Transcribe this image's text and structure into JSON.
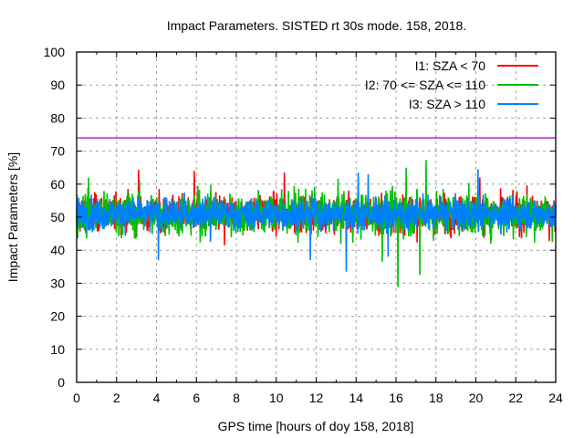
{
  "chart_data": {
    "type": "line",
    "title": "Impact Parameters. SISTED rt 30s mode. 158, 2018.",
    "xlabel": "GPS time [hours of doy 158, 2018]",
    "ylabel": "Impact Parameters [%]",
    "xlim": [
      0,
      24
    ],
    "ylim": [
      0,
      100
    ],
    "x_ticks": [
      0,
      2,
      4,
      6,
      8,
      10,
      12,
      14,
      16,
      18,
      20,
      22,
      24
    ],
    "y_ticks": [
      0,
      10,
      20,
      30,
      40,
      50,
      60,
      70,
      80,
      90,
      100
    ],
    "grid": true,
    "legend_position": "top-right",
    "threshold_line": {
      "value": 74,
      "color": "#9400d3"
    },
    "series": [
      {
        "name": "I1: SZA < 70",
        "color": "#ff0000",
        "mean": 51,
        "typical_range": [
          44,
          58
        ],
        "extremes": {
          "min": 41,
          "max": 64.5
        },
        "notable_peaks": [
          {
            "x": 3.1,
            "y": 64.3
          },
          {
            "x": 5.9,
            "y": 64.0
          },
          {
            "x": 7.4,
            "y": 41.5
          },
          {
            "x": 10.4,
            "y": 63.5
          },
          {
            "x": 14.1,
            "y": 60.5
          },
          {
            "x": 20.2,
            "y": 62.0
          }
        ]
      },
      {
        "name": "I2: 70 <= SZA <= 110",
        "color": "#00c000",
        "mean": 51,
        "typical_range": [
          42,
          59
        ],
        "extremes": {
          "min": 28.8,
          "max": 67.3
        },
        "notable_peaks": [
          {
            "x": 0.6,
            "y": 62.0
          },
          {
            "x": 16.1,
            "y": 28.8
          },
          {
            "x": 16.5,
            "y": 65.0
          },
          {
            "x": 17.2,
            "y": 32.5
          },
          {
            "x": 17.5,
            "y": 67.3
          },
          {
            "x": 15.3,
            "y": 36.5
          }
        ]
      },
      {
        "name": "I3: SZA > 110",
        "color": "#0080ff",
        "mean": 51,
        "typical_range": [
          45,
          57
        ],
        "extremes": {
          "min": 33.5,
          "max": 64.5
        },
        "notable_peaks": [
          {
            "x": 4.1,
            "y": 37.0
          },
          {
            "x": 6.7,
            "y": 42.5
          },
          {
            "x": 11.7,
            "y": 37.0
          },
          {
            "x": 13.5,
            "y": 33.5
          },
          {
            "x": 14.1,
            "y": 63.5
          },
          {
            "x": 14.6,
            "y": 63.0
          },
          {
            "x": 15.6,
            "y": 38.0
          },
          {
            "x": 20.1,
            "y": 64.5
          }
        ]
      }
    ]
  }
}
